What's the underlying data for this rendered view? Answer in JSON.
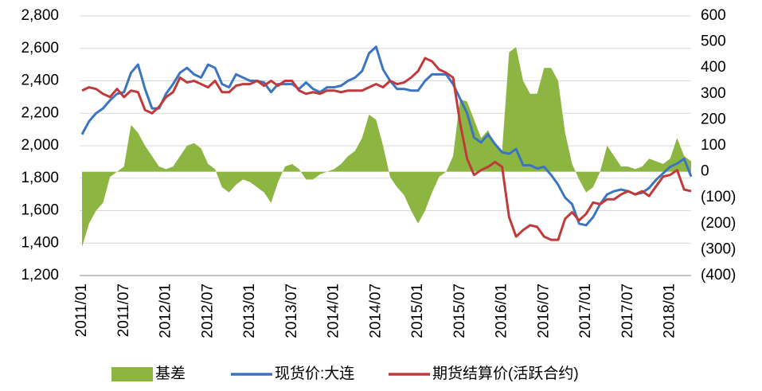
{
  "chart_data": {
    "type": "line",
    "categories": [
      "2011/01",
      null,
      null,
      null,
      null,
      null,
      "2011/07",
      null,
      null,
      null,
      null,
      null,
      "2012/01",
      null,
      null,
      null,
      null,
      null,
      "2012/07",
      null,
      null,
      null,
      null,
      null,
      "2013/01",
      null,
      null,
      null,
      null,
      null,
      "2013/07",
      null,
      null,
      null,
      null,
      null,
      "2014/01",
      null,
      null,
      null,
      null,
      null,
      "2014/07",
      null,
      null,
      null,
      null,
      null,
      "2015/01",
      null,
      null,
      null,
      null,
      null,
      "2015/07",
      null,
      null,
      null,
      null,
      null,
      "2016/01",
      null,
      null,
      null,
      null,
      null,
      "2016/07",
      null,
      null,
      null,
      null,
      null,
      "2017/01",
      null,
      null,
      null,
      null,
      null,
      "2017/07",
      null,
      null,
      null,
      null,
      null,
      "2018/01",
      null,
      null,
      null
    ],
    "series": [
      {
        "name": "基差",
        "type": "area",
        "axis": "y2",
        "color": "#8db542",
        "values": [
          -290,
          -200,
          -150,
          -120,
          -20,
          0,
          20,
          180,
          150,
          100,
          60,
          20,
          10,
          20,
          60,
          100,
          110,
          90,
          30,
          10,
          -60,
          -80,
          -50,
          -30,
          -40,
          -60,
          -80,
          -120,
          -40,
          20,
          30,
          10,
          -30,
          -30,
          -10,
          0,
          10,
          30,
          60,
          80,
          130,
          220,
          200,
          100,
          -20,
          -60,
          -90,
          -150,
          -200,
          -150,
          -80,
          -20,
          0,
          60,
          280,
          270,
          200,
          130,
          160,
          100,
          80,
          460,
          480,
          350,
          300,
          300,
          400,
          400,
          350,
          150,
          30,
          -30,
          -80,
          -60,
          0,
          100,
          60,
          20,
          20,
          10,
          20,
          50,
          40,
          30,
          50,
          130,
          60,
          40
        ]
      },
      {
        "name": "现货价:大连",
        "type": "line",
        "color": "#3b74c0",
        "values": [
          2070,
          2150,
          2200,
          2230,
          2280,
          2320,
          2330,
          2450,
          2500,
          2350,
          2230,
          2230,
          2320,
          2380,
          2450,
          2480,
          2440,
          2420,
          2500,
          2480,
          2380,
          2360,
          2440,
          2420,
          2400,
          2400,
          2390,
          2330,
          2380,
          2380,
          2380,
          2350,
          2390,
          2350,
          2330,
          2360,
          2360,
          2370,
          2400,
          2420,
          2460,
          2570,
          2610,
          2470,
          2400,
          2350,
          2350,
          2340,
          2340,
          2400,
          2440,
          2440,
          2440,
          2380,
          2290,
          2200,
          2050,
          2020,
          2070,
          2010,
          1960,
          1950,
          1980,
          1880,
          1880,
          1860,
          1870,
          1820,
          1760,
          1680,
          1640,
          1520,
          1510,
          1560,
          1640,
          1700,
          1720,
          1730,
          1720,
          1700,
          1710,
          1740,
          1790,
          1830,
          1870,
          1890,
          1920,
          1810
        ]
      },
      {
        "name": "期货结算价(活跃合约)",
        "type": "line",
        "color": "#c0393b",
        "values": [
          2340,
          2360,
          2350,
          2320,
          2300,
          2350,
          2300,
          2340,
          2330,
          2220,
          2200,
          2240,
          2300,
          2330,
          2420,
          2390,
          2400,
          2380,
          2360,
          2400,
          2330,
          2330,
          2370,
          2380,
          2380,
          2400,
          2370,
          2400,
          2370,
          2400,
          2400,
          2340,
          2320,
          2330,
          2320,
          2340,
          2340,
          2330,
          2340,
          2340,
          2340,
          2360,
          2380,
          2360,
          2400,
          2380,
          2390,
          2420,
          2460,
          2540,
          2520,
          2470,
          2450,
          2420,
          2140,
          1920,
          1820,
          1850,
          1870,
          1900,
          1870,
          1560,
          1440,
          1480,
          1510,
          1500,
          1440,
          1420,
          1420,
          1550,
          1590,
          1540,
          1580,
          1650,
          1640,
          1670,
          1670,
          1700,
          1720,
          1700,
          1720,
          1690,
          1750,
          1810,
          1820,
          1850,
          1730,
          1720
        ]
      }
    ],
    "ylim": [
      1200,
      2800
    ],
    "yticks": [
      {
        "value": 1200,
        "label": "1,200"
      },
      {
        "value": 1400,
        "label": "1,400"
      },
      {
        "value": 1600,
        "label": "1,600"
      },
      {
        "value": 1800,
        "label": "1,800"
      },
      {
        "value": 2000,
        "label": "2,000"
      },
      {
        "value": 2200,
        "label": "2,200"
      },
      {
        "value": 2400,
        "label": "2,400"
      },
      {
        "value": 2600,
        "label": "2,600"
      },
      {
        "value": 2800,
        "label": "2,800"
      }
    ],
    "y2lim": [
      -400,
      600
    ],
    "y2ticks": [
      {
        "value": -400,
        "label": "(400)"
      },
      {
        "value": -300,
        "label": "(300)"
      },
      {
        "value": -200,
        "label": "(200)"
      },
      {
        "value": -100,
        "label": "(100)"
      },
      0,
      100,
      200,
      300,
      400,
      500,
      600
    ],
    "grid": true,
    "legend": "bottom"
  }
}
